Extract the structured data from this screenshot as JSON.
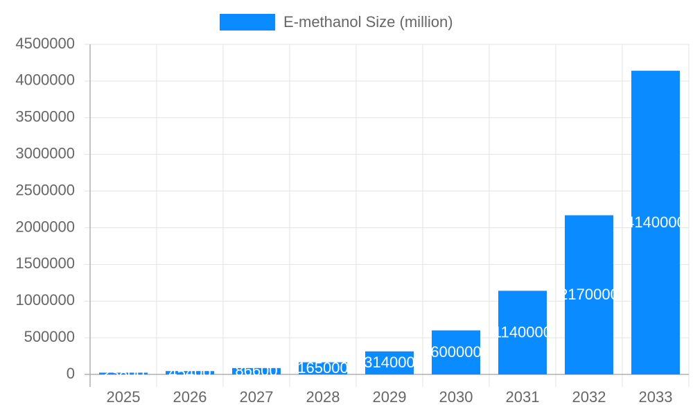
{
  "chart_data": {
    "type": "bar",
    "categories": [
      "2025",
      "2026",
      "2027",
      "2028",
      "2029",
      "2030",
      "2031",
      "2032",
      "2033"
    ],
    "series": [
      {
        "name": "E-methanol Size (million)",
        "color": "#0a8bff",
        "values": [
          23800,
          45400,
          86600,
          165000,
          314000,
          600000,
          1140000,
          2170000,
          4140000
        ]
      }
    ],
    "ylim": [
      0,
      4500000
    ],
    "yticks": [
      0,
      500000,
      1000000,
      1500000,
      2000000,
      2500000,
      3000000,
      3500000,
      4000000,
      4500000
    ],
    "grid": true,
    "legend": "top",
    "data_labels": true
  }
}
